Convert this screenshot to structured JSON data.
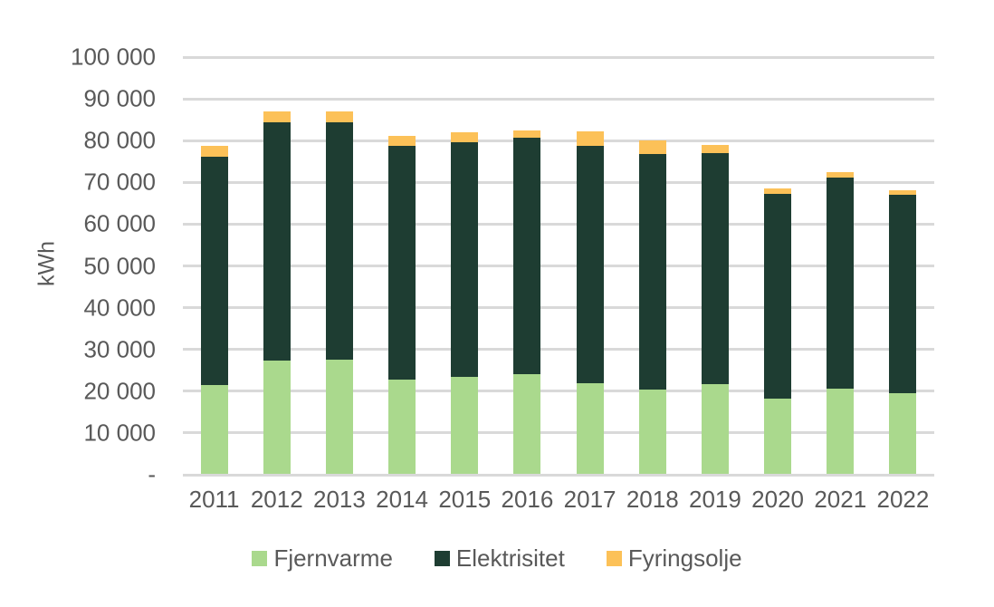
{
  "chart_data": {
    "type": "bar",
    "stacked": true,
    "title": "",
    "xlabel": "",
    "ylabel": "kWh",
    "categories": [
      "2011",
      "2012",
      "2013",
      "2014",
      "2015",
      "2016",
      "2017",
      "2018",
      "2019",
      "2020",
      "2021",
      "2022"
    ],
    "series": [
      {
        "name": "Fjernvarme",
        "color": "#aad98d",
        "values": [
          21400,
          27400,
          27500,
          22800,
          23400,
          24100,
          21900,
          20500,
          21800,
          18300,
          20600,
          19500
        ]
      },
      {
        "name": "Elektrisitet",
        "color": "#1e3d32",
        "values": [
          54800,
          57000,
          56900,
          55900,
          56200,
          56600,
          56900,
          56400,
          55200,
          49000,
          50600,
          47600
        ]
      },
      {
        "name": "Fyringsolje",
        "color": "#fcc158",
        "values": [
          2600,
          2600,
          2500,
          2500,
          2400,
          1800,
          3400,
          3200,
          2000,
          1200,
          1200,
          1100
        ]
      }
    ],
    "ylim": [
      0,
      100000
    ],
    "ytick_step": 10000,
    "ytick_labels_bottom_to_top": [
      "-",
      "10 000",
      "20 000",
      "30 000",
      "40 000",
      "50 000",
      "60 000",
      "70 000",
      "80 000",
      "90 000",
      "100 000"
    ],
    "grid": true,
    "legend_position": "bottom"
  },
  "colors": {
    "background": "#ffffff",
    "gridline": "#d9d9d9",
    "text": "#595959"
  }
}
